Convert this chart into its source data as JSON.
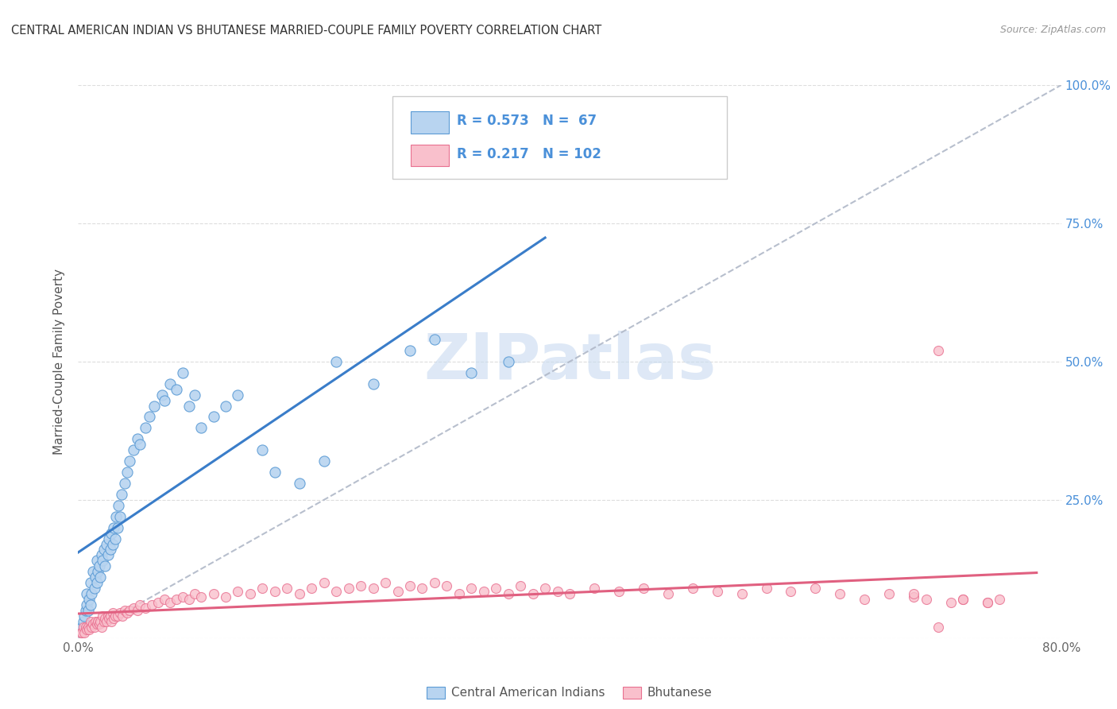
{
  "title": "CENTRAL AMERICAN INDIAN VS BHUTANESE MARRIED-COUPLE FAMILY POVERTY CORRELATION CHART",
  "source": "Source: ZipAtlas.com",
  "ylabel": "Married-Couple Family Poverty",
  "xlim": [
    0,
    0.8
  ],
  "ylim": [
    0,
    1.0
  ],
  "yticks": [
    0.0,
    0.25,
    0.5,
    0.75,
    1.0
  ],
  "ytick_labels_right": [
    "",
    "25.0%",
    "50.0%",
    "75.0%",
    "100.0%"
  ],
  "xtick_left": "0.0%",
  "xtick_right": "80.0%",
  "legend1_R": "0.573",
  "legend1_N": " 67",
  "legend2_R": "0.217",
  "legend2_N": "102",
  "legend1_label": "Central American Indians",
  "legend2_label": "Bhutanese",
  "color_blue_fill": "#b8d4f0",
  "color_blue_edge": "#5b9bd5",
  "color_pink_fill": "#f9c0cc",
  "color_pink_edge": "#e87090",
  "color_blue_line": "#3a7dc9",
  "color_pink_line": "#e06080",
  "color_dashed": "#b0b8c8",
  "color_right_axis": "#4a90d9",
  "watermark_color": "#c8daf0",
  "blue_x": [
    0.003,
    0.004,
    0.005,
    0.006,
    0.007,
    0.007,
    0.008,
    0.009,
    0.01,
    0.01,
    0.011,
    0.012,
    0.013,
    0.014,
    0.015,
    0.015,
    0.016,
    0.017,
    0.018,
    0.019,
    0.02,
    0.021,
    0.022,
    0.023,
    0.024,
    0.025,
    0.026,
    0.027,
    0.028,
    0.029,
    0.03,
    0.031,
    0.032,
    0.033,
    0.034,
    0.035,
    0.038,
    0.04,
    0.042,
    0.045,
    0.048,
    0.05,
    0.055,
    0.058,
    0.062,
    0.068,
    0.07,
    0.075,
    0.08,
    0.085,
    0.09,
    0.095,
    0.1,
    0.11,
    0.12,
    0.13,
    0.15,
    0.16,
    0.18,
    0.2,
    0.21,
    0.24,
    0.27,
    0.29,
    0.32,
    0.35,
    0.38
  ],
  "blue_y": [
    0.02,
    0.03,
    0.04,
    0.05,
    0.06,
    0.08,
    0.05,
    0.07,
    0.06,
    0.1,
    0.08,
    0.12,
    0.09,
    0.11,
    0.1,
    0.14,
    0.12,
    0.13,
    0.11,
    0.15,
    0.14,
    0.16,
    0.13,
    0.17,
    0.15,
    0.18,
    0.16,
    0.19,
    0.17,
    0.2,
    0.18,
    0.22,
    0.2,
    0.24,
    0.22,
    0.26,
    0.28,
    0.3,
    0.32,
    0.34,
    0.36,
    0.35,
    0.38,
    0.4,
    0.42,
    0.44,
    0.43,
    0.46,
    0.45,
    0.48,
    0.42,
    0.44,
    0.38,
    0.4,
    0.42,
    0.44,
    0.34,
    0.3,
    0.28,
    0.32,
    0.5,
    0.46,
    0.52,
    0.54,
    0.48,
    0.5,
    0.85
  ],
  "pink_x": [
    0.002,
    0.003,
    0.004,
    0.005,
    0.006,
    0.007,
    0.008,
    0.009,
    0.01,
    0.011,
    0.012,
    0.013,
    0.014,
    0.015,
    0.016,
    0.017,
    0.018,
    0.019,
    0.02,
    0.021,
    0.022,
    0.023,
    0.024,
    0.025,
    0.026,
    0.027,
    0.028,
    0.029,
    0.03,
    0.032,
    0.034,
    0.036,
    0.038,
    0.04,
    0.042,
    0.045,
    0.048,
    0.05,
    0.055,
    0.06,
    0.065,
    0.07,
    0.075,
    0.08,
    0.085,
    0.09,
    0.095,
    0.1,
    0.11,
    0.12,
    0.13,
    0.14,
    0.15,
    0.16,
    0.17,
    0.18,
    0.19,
    0.2,
    0.21,
    0.22,
    0.23,
    0.24,
    0.25,
    0.26,
    0.27,
    0.28,
    0.29,
    0.3,
    0.31,
    0.32,
    0.33,
    0.34,
    0.35,
    0.36,
    0.37,
    0.38,
    0.39,
    0.4,
    0.42,
    0.44,
    0.46,
    0.48,
    0.5,
    0.52,
    0.54,
    0.56,
    0.58,
    0.6,
    0.62,
    0.64,
    0.66,
    0.68,
    0.7,
    0.72,
    0.74,
    0.68,
    0.69,
    0.71,
    0.72,
    0.74,
    0.75,
    0.7
  ],
  "pink_y": [
    0.01,
    0.01,
    0.02,
    0.01,
    0.02,
    0.015,
    0.02,
    0.015,
    0.03,
    0.02,
    0.025,
    0.02,
    0.03,
    0.025,
    0.03,
    0.025,
    0.03,
    0.02,
    0.04,
    0.03,
    0.035,
    0.03,
    0.04,
    0.035,
    0.04,
    0.03,
    0.045,
    0.035,
    0.04,
    0.04,
    0.045,
    0.04,
    0.05,
    0.045,
    0.05,
    0.055,
    0.05,
    0.06,
    0.055,
    0.06,
    0.065,
    0.07,
    0.065,
    0.07,
    0.075,
    0.07,
    0.08,
    0.075,
    0.08,
    0.075,
    0.085,
    0.08,
    0.09,
    0.085,
    0.09,
    0.08,
    0.09,
    0.1,
    0.085,
    0.09,
    0.095,
    0.09,
    0.1,
    0.085,
    0.095,
    0.09,
    0.1,
    0.095,
    0.08,
    0.09,
    0.085,
    0.09,
    0.08,
    0.095,
    0.08,
    0.09,
    0.085,
    0.08,
    0.09,
    0.085,
    0.09,
    0.08,
    0.09,
    0.085,
    0.08,
    0.09,
    0.085,
    0.09,
    0.08,
    0.07,
    0.08,
    0.075,
    0.02,
    0.07,
    0.065,
    0.08,
    0.07,
    0.065,
    0.07,
    0.065,
    0.07,
    0.52
  ]
}
